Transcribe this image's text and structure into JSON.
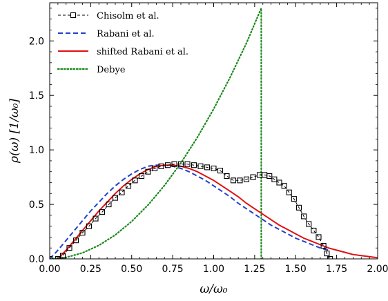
{
  "chart_data": {
    "type": "line",
    "xlabel": "ω/ω₀",
    "ylabel": "ρ(ω)  [1/ω₀]",
    "xlim": [
      0,
      2.0
    ],
    "ylim": [
      0,
      2.35
    ],
    "xticks": [
      0.0,
      0.25,
      0.5,
      0.75,
      1.0,
      1.25,
      1.5,
      1.75,
      2.0
    ],
    "xtick_labels": [
      "0.00",
      "0.25",
      "0.50",
      "0.75",
      "1.00",
      "1.25",
      "1.50",
      "1.75",
      "2.00"
    ],
    "yticks": [
      0.0,
      0.5,
      1.0,
      1.5,
      2.0
    ],
    "ytick_labels": [
      "0.0",
      "0.5",
      "1.0",
      "1.5",
      "2.0"
    ],
    "grid": false,
    "legend_position": "top-left",
    "series": [
      {
        "name": "Chisolm et al.",
        "color": "#000000",
        "style": "dashed",
        "marker": "square",
        "x": [
          0.0,
          0.05,
          0.08,
          0.12,
          0.16,
          0.2,
          0.24,
          0.28,
          0.32,
          0.36,
          0.4,
          0.44,
          0.48,
          0.52,
          0.56,
          0.6,
          0.64,
          0.68,
          0.72,
          0.76,
          0.8,
          0.84,
          0.88,
          0.92,
          0.96,
          1.0,
          1.04,
          1.08,
          1.12,
          1.16,
          1.2,
          1.24,
          1.28,
          1.31,
          1.34,
          1.37,
          1.4,
          1.43,
          1.46,
          1.49,
          1.52,
          1.55,
          1.58,
          1.61,
          1.64,
          1.67,
          1.69,
          1.71
        ],
        "y": [
          0.0,
          0.0,
          0.03,
          0.1,
          0.17,
          0.24,
          0.3,
          0.37,
          0.43,
          0.5,
          0.56,
          0.61,
          0.67,
          0.72,
          0.76,
          0.8,
          0.83,
          0.85,
          0.86,
          0.87,
          0.87,
          0.87,
          0.86,
          0.85,
          0.84,
          0.83,
          0.81,
          0.76,
          0.72,
          0.72,
          0.73,
          0.75,
          0.77,
          0.77,
          0.76,
          0.73,
          0.7,
          0.67,
          0.61,
          0.55,
          0.47,
          0.39,
          0.32,
          0.26,
          0.2,
          0.12,
          0.05,
          0.0
        ]
      },
      {
        "name": "Rabani et al.",
        "color": "#1f3fcc",
        "style": "dashed",
        "x": [
          0.0,
          0.05,
          0.1,
          0.15,
          0.2,
          0.25,
          0.3,
          0.35,
          0.4,
          0.45,
          0.5,
          0.55,
          0.6,
          0.65,
          0.7,
          0.75,
          0.8,
          0.85,
          0.9,
          0.95,
          1.0,
          1.05,
          1.1,
          1.15,
          1.2,
          1.25,
          1.3,
          1.35,
          1.4,
          1.45,
          1.5,
          1.55,
          1.6,
          1.65,
          1.7
        ],
        "y": [
          0.0,
          0.08,
          0.17,
          0.26,
          0.35,
          0.44,
          0.52,
          0.6,
          0.67,
          0.73,
          0.78,
          0.82,
          0.85,
          0.86,
          0.86,
          0.85,
          0.83,
          0.8,
          0.76,
          0.72,
          0.67,
          0.62,
          0.57,
          0.51,
          0.46,
          0.41,
          0.36,
          0.31,
          0.27,
          0.23,
          0.19,
          0.16,
          0.13,
          0.1,
          0.08
        ]
      },
      {
        "name": "shifted Rabani et al.",
        "color": "#e01010",
        "style": "solid",
        "x": [
          0.05,
          0.1,
          0.15,
          0.2,
          0.25,
          0.3,
          0.35,
          0.4,
          0.45,
          0.5,
          0.55,
          0.6,
          0.65,
          0.7,
          0.75,
          0.8,
          0.85,
          0.9,
          0.95,
          1.0,
          1.05,
          1.1,
          1.15,
          1.2,
          1.25,
          1.3,
          1.35,
          1.4,
          1.45,
          1.5,
          1.55,
          1.6,
          1.65,
          1.7,
          1.75,
          1.8,
          1.85,
          1.9,
          1.95,
          2.0
        ],
        "y": [
          0.0,
          0.08,
          0.17,
          0.26,
          0.35,
          0.44,
          0.52,
          0.6,
          0.67,
          0.73,
          0.78,
          0.82,
          0.85,
          0.86,
          0.86,
          0.85,
          0.83,
          0.8,
          0.76,
          0.72,
          0.67,
          0.62,
          0.57,
          0.51,
          0.46,
          0.41,
          0.36,
          0.31,
          0.27,
          0.23,
          0.19,
          0.16,
          0.13,
          0.1,
          0.08,
          0.06,
          0.04,
          0.03,
          0.02,
          0.01
        ]
      },
      {
        "name": "Debye",
        "color": "#1a8a1a",
        "style": "dotted",
        "x": [
          0.0,
          0.1,
          0.2,
          0.3,
          0.4,
          0.5,
          0.6,
          0.7,
          0.8,
          0.9,
          1.0,
          1.1,
          1.2,
          1.29,
          1.29,
          1.29
        ],
        "y": [
          0.0,
          0.014,
          0.055,
          0.124,
          0.22,
          0.344,
          0.495,
          0.674,
          0.88,
          1.114,
          1.376,
          1.665,
          1.981,
          2.3,
          2.3,
          0.0
        ]
      }
    ]
  }
}
